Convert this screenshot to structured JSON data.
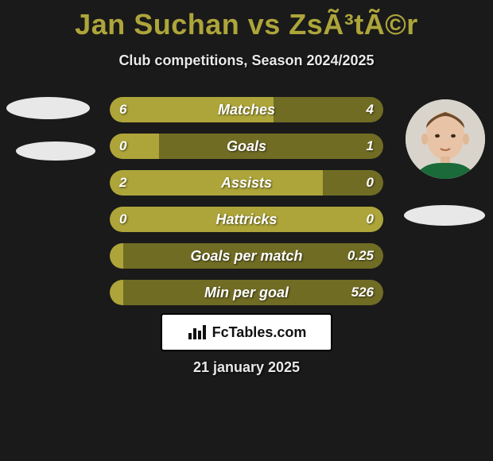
{
  "title": "Jan Suchan vs ZsÃ³tÃ©r",
  "subtitle": "Club competitions, Season 2024/2025",
  "footer_brand": "FcTables.com",
  "footer_date": "21 january 2025",
  "colors": {
    "accent": "#ada53a",
    "bar_dark": "#706c24",
    "bar_light": "#ada53a",
    "background": "#1a1a1a",
    "text": "#ffffff",
    "ellipse": "#e8e8e8",
    "badge_bg": "#ffffff"
  },
  "bars": [
    {
      "label": "Matches",
      "left": "6",
      "right": "4",
      "l_frac": 0.6,
      "r_frac": 0.4
    },
    {
      "label": "Goals",
      "left": "0",
      "right": "1",
      "l_frac": 0.18,
      "r_frac": 0.82
    },
    {
      "label": "Assists",
      "left": "2",
      "right": "0",
      "l_frac": 0.78,
      "r_frac": 0.22
    },
    {
      "label": "Hattricks",
      "left": "0",
      "right": "0",
      "l_frac": 1.0,
      "r_frac": 0.0
    },
    {
      "label": "Goals per match",
      "left": "",
      "right": "0.25",
      "l_frac": 0.05,
      "r_frac": 0.95
    },
    {
      "label": "Min per goal",
      "left": "",
      "right": "526",
      "l_frac": 0.05,
      "r_frac": 0.95
    }
  ]
}
